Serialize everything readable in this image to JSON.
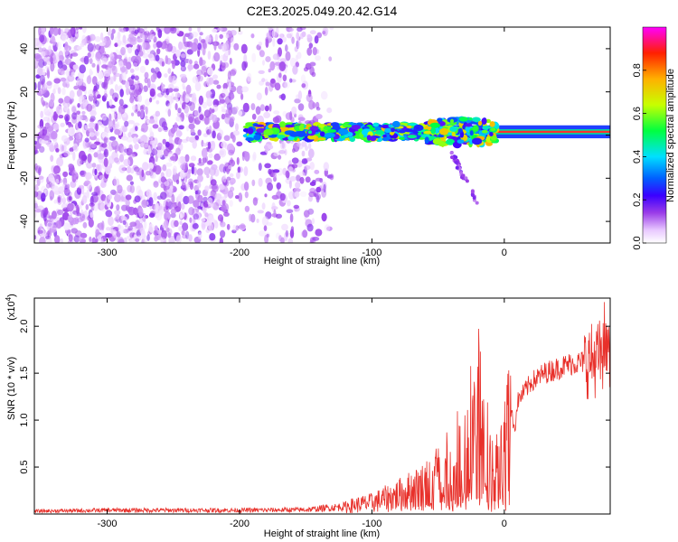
{
  "figure": {
    "title": "C2E3.2025.049.20.42.G14"
  },
  "chart_data": [
    {
      "type": "heatmap",
      "name": "spectrogram",
      "xlabel": "Height of straight line (km)",
      "ylabel": "Frequency (Hz)",
      "xlim": [
        -355,
        80
      ],
      "ylim": [
        -50,
        50
      ],
      "x_ticks": [
        -300,
        -200,
        -100,
        0
      ],
      "y_ticks": [
        -40,
        -20,
        0,
        20,
        40
      ],
      "colorbar": {
        "label": "Normalized spectral amplitude",
        "range": [
          0.0,
          1.0
        ],
        "ticks": [
          0.0,
          0.2,
          0.4,
          0.6,
          0.8
        ],
        "colormap": [
          "#ffffff",
          "#e8c8ff",
          "#9a3ce8",
          "#3a00ff",
          "#0060ff",
          "#00e0ff",
          "#00ff40",
          "#c8ff00",
          "#ffb000",
          "#ff2000",
          "#ff00ff"
        ]
      },
      "features": {
        "noise_region_x": [
          -355,
          -130
        ],
        "signal_band_x": [
          -195,
          80
        ],
        "signal_band_center_hz": 1.5,
        "signal_band_halfwidth_hz": 3
      }
    },
    {
      "type": "line",
      "name": "snr",
      "xlabel": "Height of straight line (km)",
      "ylabel": "SNR (10 * v/v)",
      "y_multiplier_label": "(x10",
      "y_multiplier_exp": "4",
      "xlim": [
        -355,
        80
      ],
      "ylim": [
        0,
        23000
      ],
      "x_ticks": [
        -300,
        -200,
        -100,
        0
      ],
      "y_ticks": [
        0.5,
        1.0,
        1.5,
        2.0
      ],
      "y_tick_labels": [
        "0.5",
        "1.0",
        "1.5",
        "2.0"
      ],
      "color": "#e8302a",
      "series": [
        {
          "x": [
            -355,
            -300,
            -250,
            -200,
            -150,
            -120,
            -100,
            -80,
            -60,
            -50,
            -40,
            -30,
            -25,
            -20,
            -15,
            -10,
            -5,
            0,
            5,
            8,
            10,
            15,
            20,
            30,
            40,
            50,
            60,
            70,
            75,
            80
          ],
          "y": [
            300,
            400,
            400,
            400,
            450,
            800,
            1200,
            2000,
            3000,
            4000,
            5000,
            7000,
            9000,
            11000,
            8000,
            4500,
            5000,
            6000,
            11000,
            9000,
            12000,
            13000,
            14000,
            15000,
            15500,
            16000,
            16200,
            16500,
            17000,
            16000
          ]
        }
      ]
    }
  ]
}
